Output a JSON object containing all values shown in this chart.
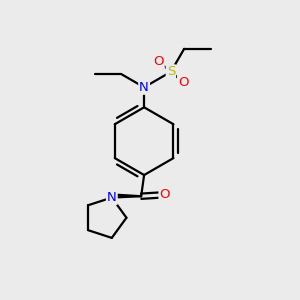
{
  "bg_color": "#ebebeb",
  "atom_colors": {
    "C": "#000000",
    "N": "#0000ee",
    "O": "#ff0000",
    "S": "#bbbb00",
    "H": "#000000"
  },
  "figsize": [
    3.0,
    3.0
  ],
  "dpi": 100,
  "lw": 1.6,
  "fontsize": 9.5
}
